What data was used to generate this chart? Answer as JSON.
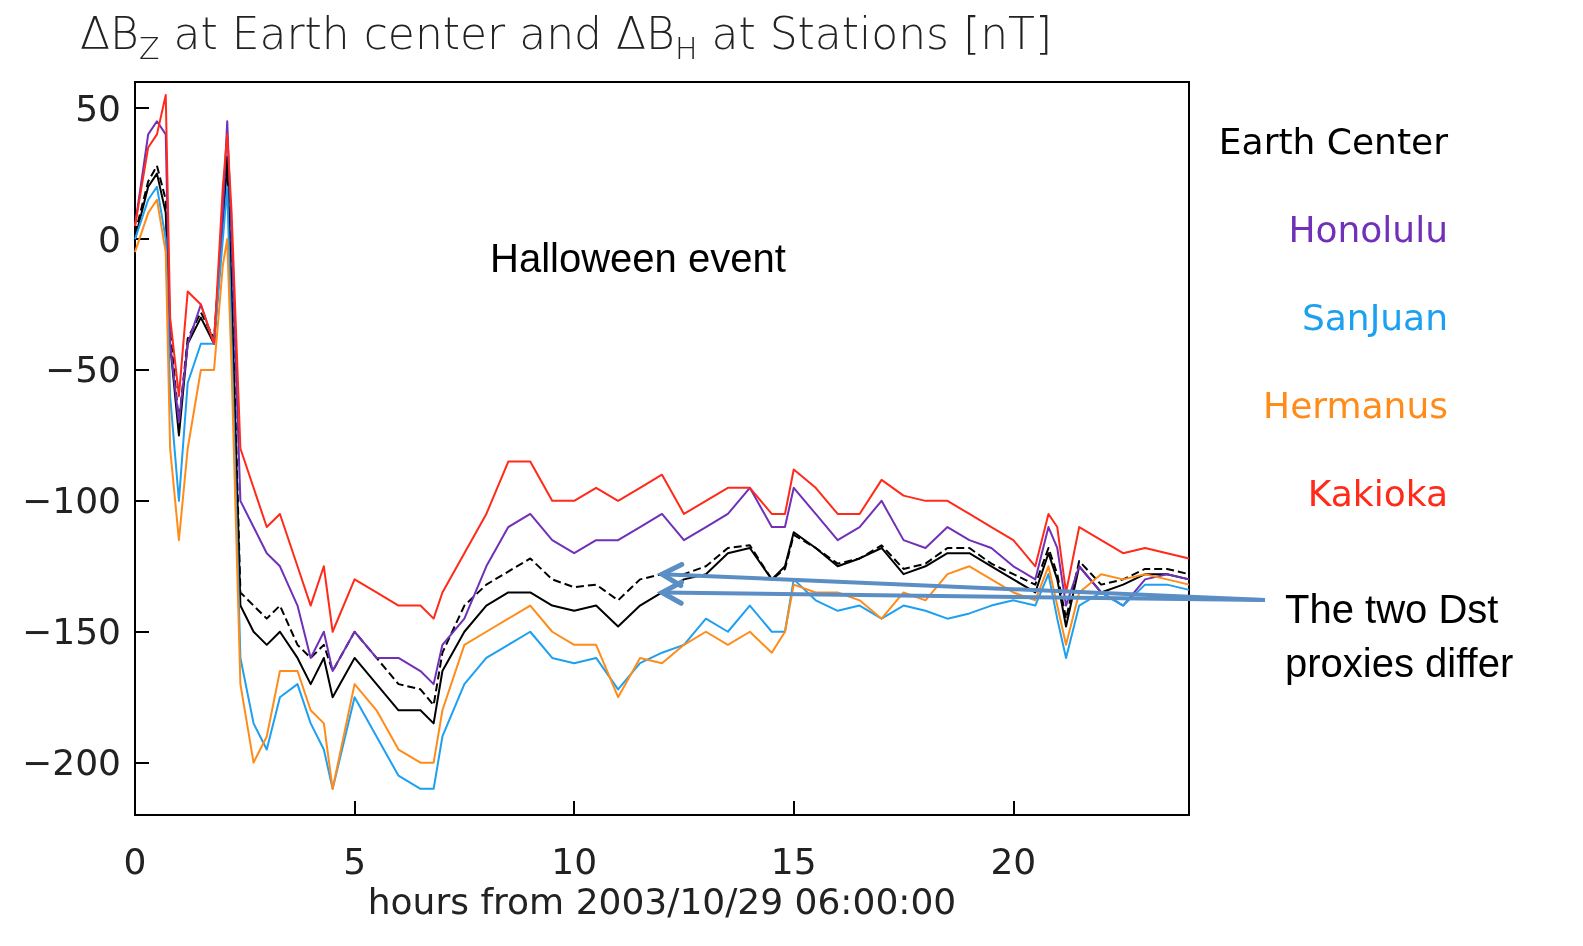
{
  "chart_data": {
    "type": "line",
    "title": "ΔB$_{Z}$ at Earth center and ΔB$_{H}$ at Stations [nT]",
    "xlabel": "hours from 2003/10/29 06:00:00",
    "x": [
      0,
      0.3,
      0.5,
      0.7,
      0.8,
      1,
      1.2,
      1.5,
      1.8,
      2,
      2.1,
      2.2,
      2.4,
      2.7,
      3,
      3.3,
      3.7,
      4,
      4.3,
      4.5,
      5,
      5.5,
      6,
      6.5,
      6.8,
      7,
      7.5,
      8,
      8.5,
      9,
      9.5,
      10,
      10.5,
      11,
      11.5,
      12,
      12.5,
      13,
      13.5,
      14,
      14.5,
      14.8,
      15,
      15.5,
      16,
      16.5,
      17,
      17.5,
      18,
      18.5,
      19,
      19.5,
      20,
      20.5,
      20.8,
      21,
      21.2,
      21.5,
      22,
      22.5,
      23,
      23.5,
      24
    ],
    "series": [
      {
        "name": "Earth Center",
        "color": "#000000",
        "values": [
          0,
          20,
          25,
          10,
          -40,
          -75,
          -40,
          -30,
          -40,
          5,
          30,
          -20,
          -140,
          -150,
          -155,
          -150,
          -160,
          -170,
          -160,
          -175,
          -160,
          -170,
          -180,
          -180,
          -185,
          -165,
          -150,
          -140,
          -135,
          -135,
          -140,
          -142,
          -140,
          -148,
          -140,
          -135,
          -130,
          -128,
          -120,
          -118,
          -130,
          -125,
          -112,
          -118,
          -125,
          -122,
          -118,
          -128,
          -125,
          -120,
          -120,
          -125,
          -130,
          -135,
          -120,
          -130,
          -148,
          -125,
          -135,
          -132,
          -128,
          -128,
          -130
        ]
      },
      {
        "color": "#000000",
        "line_style": "dashed",
        "values": [
          2,
          22,
          28,
          15,
          -35,
          -70,
          -38,
          -28,
          -38,
          8,
          32,
          -15,
          -135,
          -140,
          -145,
          -140,
          -155,
          -160,
          -155,
          -165,
          -150,
          -160,
          -170,
          -172,
          -178,
          -158,
          -140,
          -132,
          -127,
          -122,
          -130,
          -133,
          -132,
          -138,
          -130,
          -128,
          -128,
          -125,
          -118,
          -117,
          -130,
          -126,
          -113,
          -118,
          -124,
          -122,
          -117,
          -126,
          -124,
          -118,
          -118,
          -124,
          -128,
          -132,
          -118,
          -128,
          -145,
          -123,
          -132,
          -130,
          -126,
          -126,
          -128
        ]
      },
      {
        "name": "Honolulu",
        "color": "#7030b8",
        "values": [
          5,
          40,
          45,
          40,
          -40,
          -70,
          -40,
          -25,
          -40,
          10,
          45,
          0,
          -100,
          -110,
          -120,
          -125,
          -140,
          -160,
          -150,
          -165,
          -150,
          -160,
          -160,
          -165,
          -170,
          -155,
          -145,
          -125,
          -110,
          -105,
          -115,
          -120,
          -115,
          -115,
          -110,
          -105,
          -115,
          -110,
          -105,
          -95,
          -110,
          -110,
          -95,
          -105,
          -115,
          -110,
          -100,
          -115,
          -118,
          -110,
          -115,
          -118,
          -125,
          -130,
          -110,
          -118,
          -140,
          -125,
          -135,
          -140,
          -130,
          -128,
          -130
        ]
      },
      {
        "name": "SanJuan",
        "color": "#1ea0f0",
        "values": [
          0,
          15,
          20,
          0,
          -60,
          -100,
          -55,
          -40,
          -40,
          0,
          20,
          -40,
          -160,
          -185,
          -195,
          -175,
          -170,
          -185,
          -195,
          -210,
          -175,
          -190,
          -205,
          -210,
          -210,
          -190,
          -170,
          -160,
          -155,
          -150,
          -160,
          -162,
          -160,
          -172,
          -162,
          -158,
          -155,
          -145,
          -150,
          -140,
          -150,
          -150,
          -130,
          -138,
          -142,
          -140,
          -145,
          -140,
          -142,
          -145,
          -143,
          -140,
          -138,
          -140,
          -128,
          -145,
          -160,
          -140,
          -135,
          -140,
          -132,
          -132,
          -134
        ]
      },
      {
        "name": "Hermanus",
        "color": "#ff8c1a",
        "values": [
          -5,
          10,
          15,
          -5,
          -80,
          -115,
          -80,
          -50,
          -50,
          -10,
          0,
          -50,
          -170,
          -200,
          -190,
          -165,
          -165,
          -180,
          -185,
          -210,
          -170,
          -180,
          -195,
          -200,
          -200,
          -180,
          -155,
          -150,
          -145,
          -140,
          -150,
          -155,
          -155,
          -175,
          -160,
          -162,
          -155,
          -150,
          -155,
          -150,
          -158,
          -150,
          -132,
          -135,
          -135,
          -138,
          -145,
          -135,
          -138,
          -128,
          -125,
          -130,
          -135,
          -138,
          -125,
          -140,
          -155,
          -135,
          -128,
          -130,
          -128,
          -130,
          -132
        ]
      },
      {
        "name": "Kakioka",
        "color": "#ff2a1a",
        "values": [
          5,
          35,
          40,
          55,
          -30,
          -60,
          -20,
          -25,
          -40,
          20,
          40,
          10,
          -80,
          -95,
          -110,
          -105,
          -125,
          -140,
          -125,
          -150,
          -130,
          -135,
          -140,
          -140,
          -145,
          -135,
          -120,
          -105,
          -85,
          -85,
          -100,
          -100,
          -95,
          -100,
          -95,
          -90,
          -105,
          -100,
          -95,
          -95,
          -105,
          -105,
          -88,
          -95,
          -105,
          -105,
          -92,
          -98,
          -100,
          -100,
          -105,
          -110,
          -115,
          -125,
          -105,
          -110,
          -135,
          -110,
          -115,
          -120,
          -118,
          -120,
          -122
        ]
      }
    ],
    "xlim": [
      0,
      24
    ],
    "xticks": [
      0,
      5,
      10,
      15,
      20
    ],
    "ylim": [
      -220,
      60
    ],
    "yticks": [
      -200,
      -150,
      -100,
      -50,
      0,
      50
    ],
    "legend": "right",
    "marker": "none",
    "annotations": [
      "Halloween event",
      {
        "text": "The two Dst proxies differ",
        "x": 12,
        "y": -128
      }
    ]
  }
}
